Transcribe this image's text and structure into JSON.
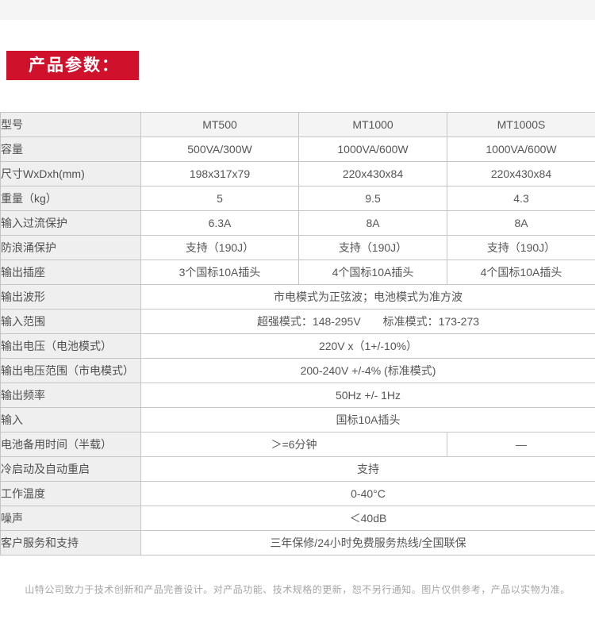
{
  "page": {
    "section_title": "产品参数：",
    "footer_note": "山特公司致力于技术创新和产品完善设计。对产品功能、技术规格的更新，恕不另行通知。图片仅供参考，产品以实物为准。",
    "colors": {
      "accent_red": "#d0112b",
      "label_cell_bg": "#efefef",
      "header_cell_bg": "#f4f4f4",
      "border": "#c5c5c5"
    }
  },
  "table": {
    "header": {
      "label": "型号",
      "models": [
        "MT500",
        "MT1000",
        "MT1000S"
      ]
    },
    "rows": [
      {
        "label": "容量",
        "values": [
          "500VA/300W",
          "1000VA/600W",
          "1000VA/600W"
        ]
      },
      {
        "label": "尺寸WxDxh(mm)",
        "values": [
          "198x317x79",
          "220x430x84",
          "220x430x84"
        ]
      },
      {
        "label": "重量（kg）",
        "values": [
          "5",
          "9.5",
          "4.3"
        ]
      },
      {
        "label": "输入过流保护",
        "values": [
          "6.3A",
          "8A",
          "8A"
        ]
      },
      {
        "label": "防浪涌保护",
        "values": [
          "支持（190J）",
          "支持（190J）",
          "支持（190J）"
        ]
      },
      {
        "label": "输出插座",
        "values": [
          "3个国标10A插头",
          "4个国标10A插头",
          "4个国标10A插头"
        ]
      },
      {
        "label": "输出波形",
        "values": [
          "市电模式为正弦波；电池模式为准方波"
        ]
      },
      {
        "label": "输入范围",
        "values": [
          "超强模式：148-295V　　标准模式：173-273"
        ]
      },
      {
        "label": "输出电压（电池模式）",
        "values": [
          "220V x（1+/-10%）"
        ]
      },
      {
        "label": "输出电压范围（市电模式）",
        "values": [
          "200-240V +/-4% (标准模式)"
        ]
      },
      {
        "label": "输出频率",
        "values": [
          "50Hz +/- 1Hz"
        ]
      },
      {
        "label": "输入",
        "values": [
          "国标10A插头"
        ]
      },
      {
        "label": "电池备用时间（半载）",
        "values": [
          "＞=6分钟",
          "—"
        ]
      },
      {
        "label": "冷启动及自动重启",
        "values": [
          "支持"
        ]
      },
      {
        "label": "工作温度",
        "values": [
          "0-40°C"
        ]
      },
      {
        "label": "噪声",
        "values": [
          "＜40dB"
        ]
      },
      {
        "label": "客户服务和支持",
        "values": [
          "三年保修/24小时免费服务热线/全国联保"
        ]
      }
    ]
  }
}
